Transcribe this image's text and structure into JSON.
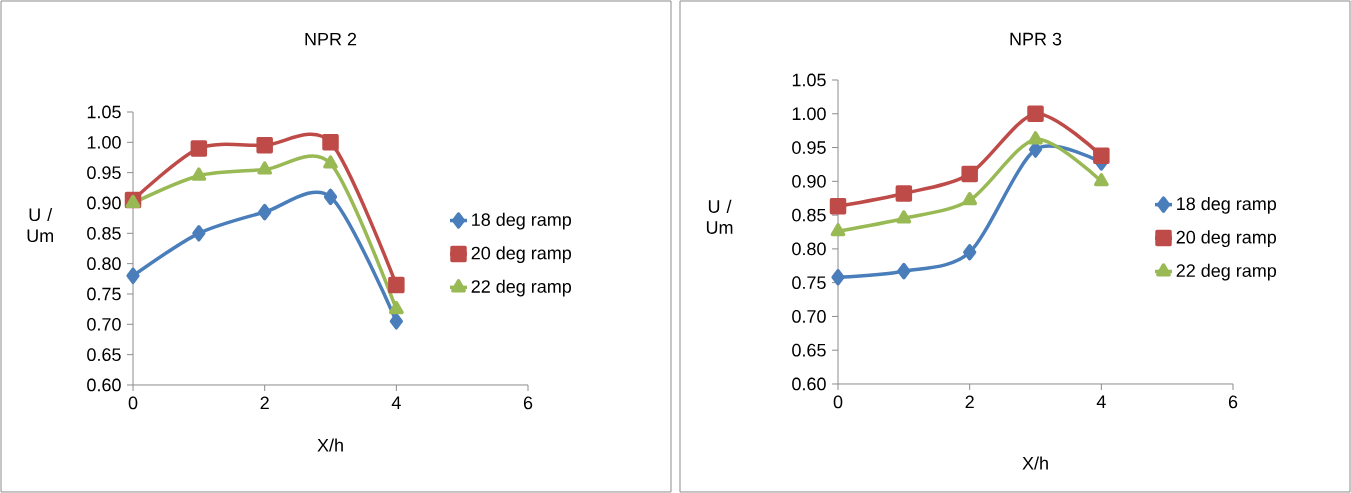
{
  "chart_data": [
    {
      "type": "line",
      "title": "NPR 2",
      "xlabel": "X/h",
      "ylabel": "U / Um",
      "xlim": [
        0,
        6
      ],
      "xticks": [
        0,
        2,
        4,
        6
      ],
      "ylim": [
        0.6,
        1.05
      ],
      "yticks": [
        {
          "value": 0.6,
          "label": "0.60"
        },
        {
          "value": 0.65,
          "label": "0.65"
        },
        {
          "value": 0.7,
          "label": "0.70"
        },
        {
          "value": 0.75,
          "label": "0.75"
        },
        {
          "value": 0.8,
          "label": "0.80"
        },
        {
          "value": 0.85,
          "label": "0.85"
        },
        {
          "value": 0.9,
          "label": "0.90"
        },
        {
          "value": 0.95,
          "label": "0.95"
        },
        {
          "value": 1.0,
          "label": "1.00"
        },
        {
          "value": 1.05,
          "label": "1.05"
        }
      ],
      "x": [
        0,
        1,
        2,
        3,
        4
      ],
      "grid": false,
      "legend": "right",
      "series": [
        {
          "name": "18 deg ramp",
          "color": "#4a7ebb",
          "marker": "diamond",
          "values": [
            0.78,
            0.85,
            0.885,
            0.91,
            0.705
          ]
        },
        {
          "name": "20 deg ramp",
          "color": "#be4b48",
          "marker": "square",
          "values": [
            0.905,
            0.99,
            0.995,
            1.0,
            0.765
          ]
        },
        {
          "name": "22 deg ramp",
          "color": "#98b954",
          "marker": "triangle",
          "values": [
            0.9,
            0.945,
            0.955,
            0.965,
            0.725
          ]
        }
      ]
    },
    {
      "type": "line",
      "title": "NPR 3",
      "xlabel": "X/h",
      "ylabel": "U / Um",
      "xlim": [
        0,
        6
      ],
      "xticks": [
        0,
        2,
        4,
        6
      ],
      "ylim": [
        0.6,
        1.05
      ],
      "yticks": [
        {
          "value": 0.6,
          "label": "0.60"
        },
        {
          "value": 0.65,
          "label": "0.65"
        },
        {
          "value": 0.7,
          "label": "0.70"
        },
        {
          "value": 0.75,
          "label": "0.75"
        },
        {
          "value": 0.8,
          "label": "0.80"
        },
        {
          "value": 0.85,
          "label": "0.85"
        },
        {
          "value": 0.9,
          "label": "0.90"
        },
        {
          "value": 0.95,
          "label": "0.95"
        },
        {
          "value": 1.0,
          "label": "1.00"
        },
        {
          "value": 1.05,
          "label": "1.05"
        }
      ],
      "x": [
        0,
        1,
        2,
        3,
        4
      ],
      "grid": false,
      "legend": "right",
      "series": [
        {
          "name": "18 deg ramp",
          "color": "#4a7ebb",
          "marker": "diamond",
          "values": [
            0.758,
            0.767,
            0.795,
            0.947,
            0.928
          ]
        },
        {
          "name": "20 deg ramp",
          "color": "#be4b48",
          "marker": "square",
          "values": [
            0.863,
            0.882,
            0.911,
            1.0,
            0.938
          ]
        },
        {
          "name": "22 deg ramp",
          "color": "#98b954",
          "marker": "triangle",
          "values": [
            0.826,
            0.845,
            0.872,
            0.962,
            0.9
          ]
        }
      ]
    }
  ]
}
